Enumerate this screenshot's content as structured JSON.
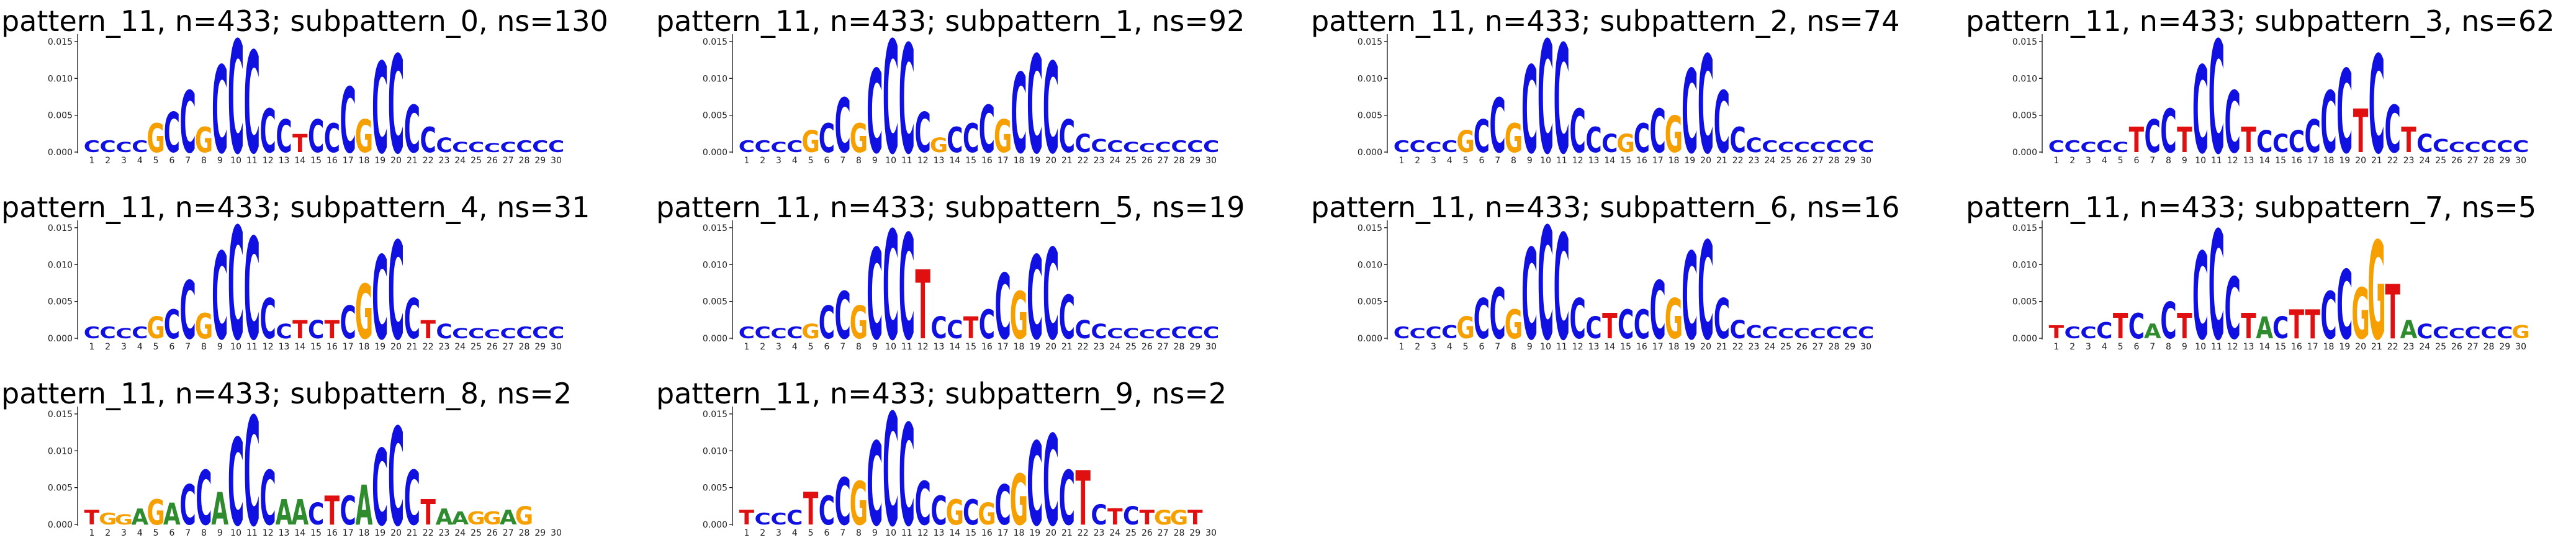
{
  "chart_data": [
    {
      "type": "sequence-logo",
      "title": "pattern_11, n=433; subpattern_0, ns=130",
      "yticks": [
        "0.000",
        "0.005",
        "0.010",
        "0.015"
      ],
      "ylim": [
        0,
        0.016
      ],
      "xticks": [
        "1",
        "2",
        "3",
        "4",
        "5",
        "6",
        "7",
        "8",
        "9",
        "10",
        "11",
        "12",
        "13",
        "14",
        "15",
        "16",
        "17",
        "18",
        "19",
        "20",
        "21",
        "22",
        "23",
        "24",
        "25",
        "26",
        "27",
        "28",
        "29",
        "30"
      ],
      "columns": [
        "C.0016",
        "C.0016",
        "C.0014",
        "C.0016",
        "G.004",
        "C.0055",
        "C.0085",
        "G.0035",
        "C.012",
        "C.0155",
        "C.014",
        "C.006",
        "C.0045",
        "T.0025",
        "C.0045",
        "C.004",
        "C.009",
        "G.0045",
        "C.0125",
        "C.0135",
        "C.0065",
        "C.0035",
        "C.002",
        "C.0014",
        "C.0014",
        "C.0012",
        "C.0014",
        "C.0016",
        "C.0016",
        "C.0016"
      ]
    },
    {
      "type": "sequence-logo",
      "title": "pattern_11, n=433; subpattern_1, ns=92",
      "yticks": [
        "0.000",
        "0.005",
        "0.010",
        "0.015"
      ],
      "ylim": [
        0,
        0.016
      ],
      "xticks": [
        "1",
        "2",
        "3",
        "4",
        "5",
        "6",
        "7",
        "8",
        "9",
        "10",
        "11",
        "12",
        "13",
        "14",
        "15",
        "16",
        "17",
        "18",
        "19",
        "20",
        "21",
        "22",
        "23",
        "24",
        "25",
        "26",
        "27",
        "28",
        "29",
        "30"
      ],
      "columns": [
        "C.0016",
        "C.0016",
        "C.0014",
        "C.0016",
        "G.003",
        "C.004",
        "C.0075",
        "G.004",
        "C.0115",
        "C.0155",
        "C.015",
        "C.0055",
        "G.002",
        "C.0035",
        "C.004",
        "C.0065",
        "G.0045",
        "C.011",
        "C.0135",
        "C.0125",
        "C.0045",
        "C.0025",
        "C.0018",
        "C.0016",
        "C.0014",
        "C.0012",
        "C.0014",
        "C.0016",
        "C.0016",
        "C.0016"
      ]
    },
    {
      "type": "sequence-logo",
      "title": "pattern_11, n=433; subpattern_2, ns=74",
      "yticks": [
        "0.000",
        "0.005",
        "0.010",
        "0.015"
      ],
      "ylim": [
        0,
        0.016
      ],
      "xticks": [
        "1",
        "2",
        "3",
        "4",
        "5",
        "6",
        "7",
        "8",
        "9",
        "10",
        "11",
        "12",
        "13",
        "14",
        "15",
        "16",
        "17",
        "18",
        "19",
        "20",
        "21",
        "22",
        "23",
        "24",
        "25",
        "26",
        "27",
        "28",
        "29",
        "30"
      ],
      "columns": [
        "C.0016",
        "C.0016",
        "C.0014",
        "C.0016",
        "G.003",
        "C.0045",
        "C.0075",
        "G.004",
        "C.012",
        "C.0155",
        "C.015",
        "C.006",
        "C.0035",
        "C.0025",
        "G.0025",
        "C.004",
        "C.006",
        "G.005",
        "C.0115",
        "C.0135",
        "C.0085",
        "C.0035",
        "C.002",
        "C.0016",
        "C.0014",
        "C.0014",
        "C.0014",
        "C.0016",
        "C.0016",
        "C.0016"
      ]
    },
    {
      "type": "sequence-logo",
      "title": "pattern_11, n=433; subpattern_3, ns=62",
      "yticks": [
        "0.000",
        "0.005",
        "0.010",
        "0.015"
      ],
      "ylim": [
        0,
        0.016
      ],
      "xticks": [
        "1",
        "2",
        "3",
        "4",
        "5",
        "6",
        "7",
        "8",
        "9",
        "10",
        "11",
        "12",
        "13",
        "14",
        "15",
        "16",
        "17",
        "18",
        "19",
        "20",
        "21",
        "22",
        "23",
        "24",
        "25",
        "26",
        "27",
        "28",
        "29",
        "30"
      ],
      "columns": [
        "C.0016",
        "C.0016",
        "C.0014",
        "C.0016",
        "C.0014",
        "T.0035",
        "C.0045",
        "C.006",
        "T.0035",
        "C.012",
        "C.0155",
        "C.0085",
        "T.0035",
        "C.003",
        "C.0025",
        "C.003",
        "C.0045",
        "C.0085",
        "C.0115",
        "T.006",
        "C.0135",
        "C.0065",
        "T.0035",
        "C.0025",
        "C.0018",
        "C.0014",
        "C.0014",
        "C.0016",
        "C.0016",
        "C.0016"
      ]
    },
    {
      "type": "sequence-logo",
      "title": "pattern_11, n=433; subpattern_4, ns=31",
      "yticks": [
        "0.000",
        "0.005",
        "0.010",
        "0.015"
      ],
      "ylim": [
        0,
        0.016
      ],
      "xticks": [
        "1",
        "2",
        "3",
        "4",
        "5",
        "6",
        "7",
        "8",
        "9",
        "10",
        "11",
        "12",
        "13",
        "14",
        "15",
        "16",
        "17",
        "18",
        "19",
        "20",
        "21",
        "22",
        "23",
        "24",
        "25",
        "26",
        "27",
        "28",
        "29",
        "30"
      ],
      "columns": [
        "C.0016",
        "C.0016",
        "C.0014",
        "C.0016",
        "G.003",
        "C.004",
        "C.008",
        "G.0035",
        "C.012",
        "C.0155",
        "C.014",
        "C.0055",
        "C.002",
        "T.0025",
        "C.0025",
        "T.0025",
        "C.0045",
        "G.0075",
        "C.0115",
        "C.0135",
        "C.0055",
        "T.0025",
        "C.002",
        "C.0014",
        "C.0014",
        "C.0012",
        "C.0014",
        "C.0016",
        "C.0016",
        "C.0016"
      ]
    },
    {
      "type": "sequence-logo",
      "title": "pattern_11, n=433; subpattern_5, ns=19",
      "yticks": [
        "0.000",
        "0.005",
        "0.010",
        "0.015"
      ],
      "ylim": [
        0,
        0.016
      ],
      "xticks": [
        "1",
        "2",
        "3",
        "4",
        "5",
        "6",
        "7",
        "8",
        "9",
        "10",
        "11",
        "12",
        "13",
        "14",
        "15",
        "16",
        "17",
        "18",
        "19",
        "20",
        "21",
        "22",
        "23",
        "24",
        "25",
        "26",
        "27",
        "28",
        "29",
        "30"
      ],
      "columns": [
        "C.0016",
        "C.0016",
        "C.0014",
        "C.0016",
        "G.002",
        "C.0045",
        "C.0065",
        "G.0045",
        "C.0125",
        "C.015",
        "C.0145",
        "T.0095",
        "C.003",
        "C.0025",
        "T.003",
        "C.004",
        "C.009",
        "G.0065",
        "C.0115",
        "C.0125",
        "C.006",
        "C.0025",
        "C.002",
        "C.0014",
        "C.0014",
        "C.0012",
        "C.0014",
        "C.0016",
        "C.0016",
        "C.0016"
      ]
    },
    {
      "type": "sequence-logo",
      "title": "pattern_11, n=433; subpattern_6, ns=16",
      "yticks": [
        "0.000",
        "0.005",
        "0.010",
        "0.015"
      ],
      "ylim": [
        0,
        0.016
      ],
      "xticks": [
        "1",
        "2",
        "3",
        "4",
        "5",
        "6",
        "7",
        "8",
        "9",
        "10",
        "11",
        "12",
        "13",
        "14",
        "15",
        "16",
        "17",
        "18",
        "19",
        "20",
        "21",
        "22",
        "23",
        "24",
        "25",
        "26",
        "27",
        "28",
        "29",
        "30"
      ],
      "columns": [
        "C.0016",
        "C.0014",
        "C.0016",
        "C.0018",
        "G.003",
        "C.0055",
        "C.007",
        "G.004",
        "C.0125",
        "C.0155",
        "C.0145",
        "C.0055",
        "C.003",
        "T.0035",
        "C.004",
        "C.004",
        "C.008",
        "G.0055",
        "C.012",
        "C.0135",
        "C.0055",
        "C.0025",
        "C.0018",
        "C.0016",
        "C.0014",
        "C.0014",
        "C.0014",
        "C.0016",
        "C.0016",
        "C.0016"
      ]
    },
    {
      "type": "sequence-logo",
      "title": "pattern_11, n=433; subpattern_7, ns=5",
      "yticks": [
        "0.000",
        "0.005",
        "0.010",
        "0.015"
      ],
      "ylim": [
        0,
        0.016
      ],
      "xticks": [
        "1",
        "2",
        "3",
        "4",
        "5",
        "6",
        "7",
        "8",
        "9",
        "10",
        "11",
        "12",
        "13",
        "14",
        "15",
        "16",
        "17",
        "18",
        "19",
        "20",
        "21",
        "22",
        "23",
        "24",
        "25",
        "26",
        "27",
        "28",
        "29",
        "30"
      ],
      "columns": [
        "T.0018",
        "C.0016",
        "C.0016",
        "C.0022",
        "T.0035",
        "C.0035",
        "A.002",
        "C.005",
        "T.0035",
        "C.012",
        "C.015",
        "C.0085",
        "T.0035",
        "A.003",
        "C.003",
        "T.004",
        "T.004",
        "C.0065",
        "C.0095",
        "G.007",
        "G.0135",
        "T.0075",
        "A.0025",
        "C.002",
        "C.0016",
        "C.0014",
        "C.0016",
        "C.0016",
        "C.0016",
        "G.0018"
      ]
    },
    {
      "type": "sequence-logo",
      "title": "pattern_11, n=433; subpattern_8, ns=2",
      "yticks": [
        "0.000",
        "0.005",
        "0.010",
        "0.015"
      ],
      "ylim": [
        0,
        0.016
      ],
      "xticks": [
        "1",
        "2",
        "3",
        "4",
        "5",
        "6",
        "7",
        "8",
        "9",
        "10",
        "11",
        "12",
        "13",
        "14",
        "15",
        "16",
        "17",
        "18",
        "19",
        "20",
        "21",
        "22",
        "23",
        "24",
        "25",
        "26",
        "27",
        "28",
        "29",
        "30"
      ],
      "columns": [
        "T.002",
        "G.0016",
        "G.0014",
        "A.0022",
        "G.0035",
        "A.003",
        "C.0055",
        "C.0075",
        "A.0045",
        "C.012",
        "C.015",
        "C.0075",
        "A.0035",
        "A.0035",
        "C.003",
        "T.004",
        "C.004",
        "A.0055",
        "C.0105",
        "C.0135",
        "C.0075",
        "T.0035",
        "A.0022",
        "A.0018",
        "G.0018",
        "G.0018",
        "A.002",
        "G.0025",
        "",
        ""
      ]
    },
    {
      "type": "sequence-logo",
      "title": "pattern_11, n=433; subpattern_9, ns=2",
      "yticks": [
        "0.000",
        "0.005",
        "0.010",
        "0.015"
      ],
      "ylim": [
        0,
        0.016
      ],
      "xticks": [
        "1",
        "2",
        "3",
        "4",
        "5",
        "6",
        "7",
        "8",
        "9",
        "10",
        "11",
        "12",
        "13",
        "14",
        "15",
        "16",
        "17",
        "18",
        "19",
        "20",
        "21",
        "22",
        "23",
        "24",
        "25",
        "26",
        "27",
        "28",
        "29",
        "30"
      ],
      "columns": [
        "T.002",
        "C.0016",
        "C.0016",
        "C.002",
        "T.0045",
        "C.004",
        "C.0065",
        "G.006",
        "C.0115",
        "C.0155",
        "C.014",
        "C.006",
        "C.004",
        "G.0035",
        "C.0035",
        "G.003",
        "C.0055",
        "G.007",
        "C.0115",
        "C.0125",
        "C.0075",
        "T.0075",
        "C.0028",
        "T.0022",
        "C.0025",
        "T.002",
        "G.002",
        "G.002",
        "T.002",
        ""
      ]
    }
  ]
}
